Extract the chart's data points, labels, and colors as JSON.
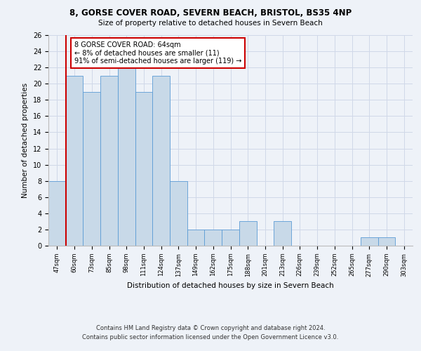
{
  "title_line1": "8, GORSE COVER ROAD, SEVERN BEACH, BRISTOL, BS35 4NP",
  "title_line2": "Size of property relative to detached houses in Severn Beach",
  "xlabel": "Distribution of detached houses by size in Severn Beach",
  "ylabel": "Number of detached properties",
  "categories": [
    "47sqm",
    "60sqm",
    "73sqm",
    "85sqm",
    "98sqm",
    "111sqm",
    "124sqm",
    "137sqm",
    "149sqm",
    "162sqm",
    "175sqm",
    "188sqm",
    "201sqm",
    "213sqm",
    "226sqm",
    "239sqm",
    "252sqm",
    "265sqm",
    "277sqm",
    "290sqm",
    "303sqm"
  ],
  "values": [
    8,
    21,
    19,
    21,
    22,
    19,
    21,
    8,
    2,
    2,
    2,
    3,
    0,
    3,
    0,
    0,
    0,
    0,
    1,
    1,
    0
  ],
  "bar_color": "#c8d9e8",
  "bar_edge_color": "#5b9bd5",
  "grid_color": "#d0d8e8",
  "background_color": "#eef2f8",
  "plot_bg_color": "#eef2f8",
  "annotation_text": "8 GORSE COVER ROAD: 64sqm\n← 8% of detached houses are smaller (11)\n91% of semi-detached houses are larger (119) →",
  "annotation_box_color": "#ffffff",
  "annotation_box_edge": "#cc0000",
  "red_line_color": "#cc0000",
  "ylim": [
    0,
    26
  ],
  "yticks": [
    0,
    2,
    4,
    6,
    8,
    10,
    12,
    14,
    16,
    18,
    20,
    22,
    24,
    26
  ],
  "footnote1": "Contains HM Land Registry data © Crown copyright and database right 2024.",
  "footnote2": "Contains public sector information licensed under the Open Government Licence v3.0."
}
